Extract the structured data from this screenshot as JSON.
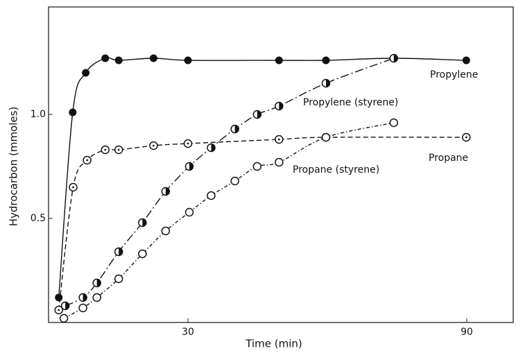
{
  "chart_data": {
    "type": "scatter",
    "x_label": "Time (min)",
    "y_label": "Hydrocarbon (mmoles)",
    "xlim": [
      0,
      100
    ],
    "ylim": [
      0,
      1.5
    ],
    "xticks": [
      30,
      90
    ],
    "yticks": [
      0.5,
      {
        "value": 1,
        "label": "1.0"
      }
    ],
    "series": [
      {
        "name": "Propylene",
        "color": "#111",
        "line": "solid",
        "marker": "filled",
        "x": [
          2.2,
          5.2,
          8.0,
          12.2,
          15.1,
          22.6,
          30,
          49.6,
          59.7,
          74.3,
          89.9
        ],
        "values": [
          0.12,
          1.01,
          1.2,
          1.27,
          1.26,
          1.27,
          1.26,
          1.26,
          1.26,
          1.27,
          1.26
        ]
      },
      {
        "name": "Propylene (styrene)",
        "color": "#111",
        "line": "dashdot",
        "marker": "half",
        "x": [
          3.6,
          7.4,
          10.4,
          15.1,
          20.2,
          25.2,
          30.3,
          35,
          40.1,
          44.9,
          49.6,
          59.7,
          74.3
        ],
        "values": [
          0.08,
          0.12,
          0.19,
          0.34,
          0.48,
          0.63,
          0.75,
          0.84,
          0.93,
          1.0,
          1.04,
          1.15,
          1.27
        ]
      },
      {
        "name": "Propane",
        "color": "#111",
        "line": "dashed",
        "marker": "dotted",
        "x": [
          2.2,
          5.3,
          8.3,
          12.2,
          15.1,
          22.6,
          30,
          49.6,
          59.7,
          89.9
        ],
        "values": [
          0.06,
          0.65,
          0.78,
          0.83,
          0.83,
          0.85,
          0.86,
          0.88,
          0.89,
          0.89
        ]
      },
      {
        "name": "Propane (styrene)",
        "color": "#111",
        "line": "dotdash",
        "marker": "open",
        "x": [
          3.3,
          7.4,
          10.4,
          15.1,
          20.2,
          25.2,
          30.3,
          35,
          40.1,
          44.9,
          49.6,
          59.7,
          74.3
        ],
        "values": [
          0.02,
          0.07,
          0.12,
          0.21,
          0.33,
          0.44,
          0.53,
          0.61,
          0.68,
          0.75,
          0.77,
          0.89,
          0.96
        ]
      }
    ]
  }
}
